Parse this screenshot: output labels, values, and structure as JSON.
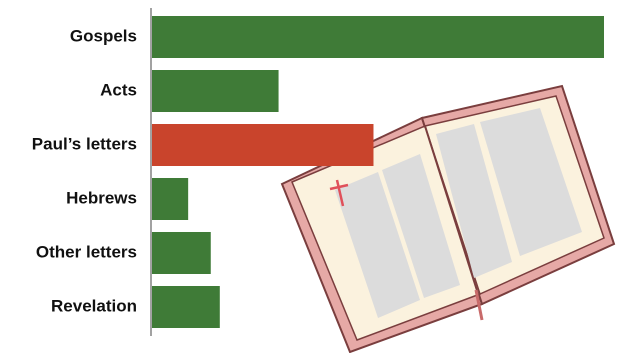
{
  "chart_data": {
    "type": "bar",
    "orientation": "horizontal",
    "categories": [
      "Gospels",
      "Acts",
      "Paul’s letters",
      "Hebrews",
      "Other letters",
      "Revelation"
    ],
    "values": [
      100,
      28,
      49,
      8,
      13,
      15
    ],
    "colors": [
      "#3f7b37",
      "#3f7b37",
      "#c9442c",
      "#3f7b37",
      "#3f7b37",
      "#3f7b37"
    ]
  }
}
